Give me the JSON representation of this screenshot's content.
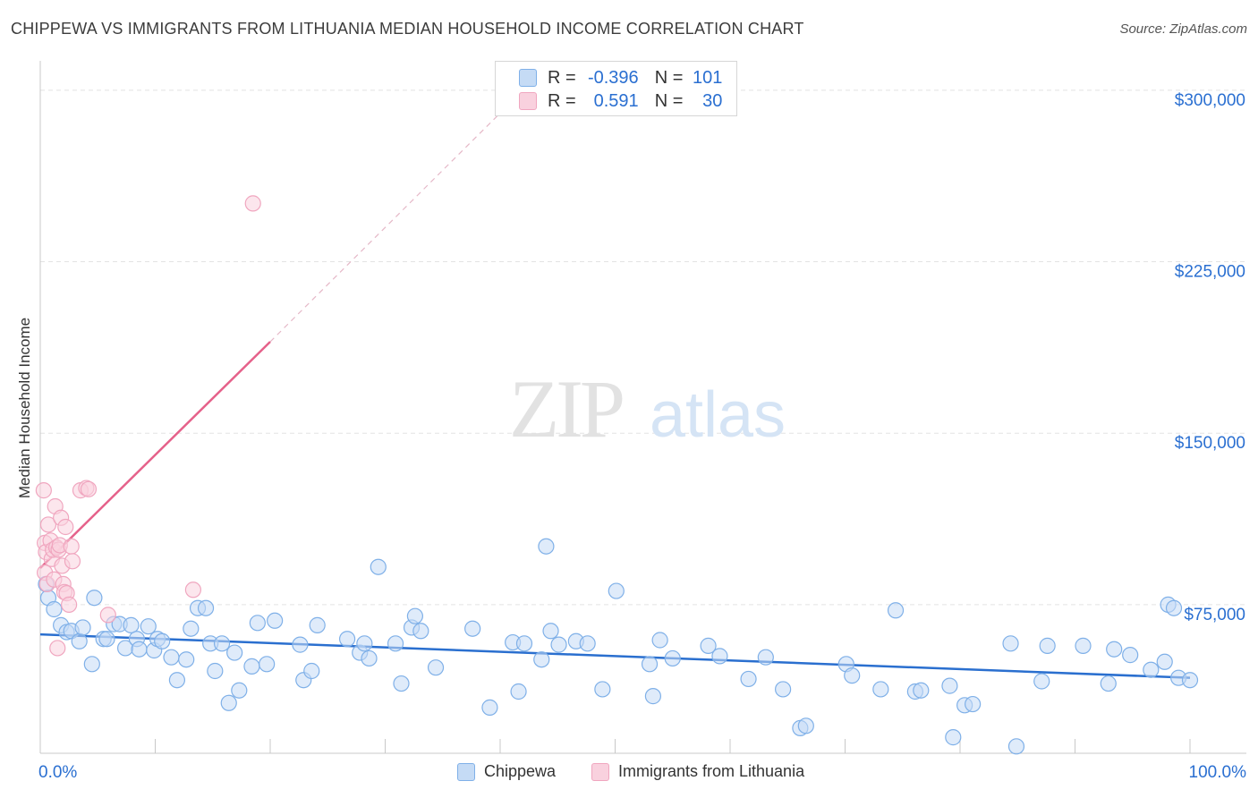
{
  "chart_data": {
    "type": "scatter",
    "title": "CHIPPEWA VS IMMIGRANTS FROM LITHUANIA MEDIAN HOUSEHOLD INCOME CORRELATION CHART",
    "source": "Source: ZipAtlas.com",
    "ylabel": "Median Household Income",
    "xlabel": "",
    "xlim": [
      0,
      100
    ],
    "ylim": [
      10000,
      316000
    ],
    "x_tick_labels": [
      "0.0%",
      "100.0%"
    ],
    "y_tick_values": [
      75000,
      150000,
      225000,
      300000
    ],
    "y_tick_labels": [
      "$75,000",
      "$150,000",
      "$225,000",
      "$300,000"
    ],
    "watermark": {
      "zip": "ZIP",
      "atlas": "atlas"
    },
    "legend": [
      {
        "r_label": "R =",
        "r_value": "-0.396",
        "n_label": "N =",
        "n_value": "101"
      },
      {
        "r_label": "R =",
        "r_value": "0.591",
        "n_label": "N =",
        "n_value": "30"
      }
    ],
    "series": [
      {
        "name": "Chippewa",
        "color": "#7fb0e8",
        "fill": "#c5dbf5",
        "line_color": "#2a6fcf",
        "trend": {
          "x": [
            0,
            100
          ],
          "y": [
            62000,
            43000
          ]
        },
        "points": [
          [
            0.5,
            84000
          ],
          [
            0.7,
            78000
          ],
          [
            1.2,
            73000
          ],
          [
            1.8,
            66000
          ],
          [
            2.3,
            63000
          ],
          [
            2.7,
            63500
          ],
          [
            3.4,
            59000
          ],
          [
            3.7,
            65000
          ],
          [
            4.5,
            49000
          ],
          [
            4.7,
            78000
          ],
          [
            5.5,
            60000
          ],
          [
            5.8,
            60000
          ],
          [
            6.4,
            66500
          ],
          [
            6.9,
            66500
          ],
          [
            7.4,
            56000
          ],
          [
            7.9,
            66000
          ],
          [
            8.4,
            60000
          ],
          [
            8.6,
            55500
          ],
          [
            9.4,
            65500
          ],
          [
            9.9,
            55000
          ],
          [
            10.2,
            60000
          ],
          [
            10.6,
            59000
          ],
          [
            11.4,
            52000
          ],
          [
            11.9,
            42000
          ],
          [
            12.7,
            51000
          ],
          [
            13.1,
            64500
          ],
          [
            13.7,
            73500
          ],
          [
            14.4,
            73500
          ],
          [
            14.8,
            58000
          ],
          [
            15.2,
            46000
          ],
          [
            15.8,
            58000
          ],
          [
            16.4,
            32000
          ],
          [
            16.9,
            54000
          ],
          [
            17.3,
            37500
          ],
          [
            18.4,
            48000
          ],
          [
            18.9,
            67000
          ],
          [
            19.7,
            49000
          ],
          [
            20.4,
            68000
          ],
          [
            22.6,
            57500
          ],
          [
            22.9,
            42000
          ],
          [
            23.6,
            46000
          ],
          [
            24.1,
            66000
          ],
          [
            26.7,
            60000
          ],
          [
            27.8,
            54000
          ],
          [
            28.2,
            58000
          ],
          [
            28.6,
            51500
          ],
          [
            29.4,
            91500
          ],
          [
            30.9,
            58000
          ],
          [
            31.4,
            40500
          ],
          [
            32.3,
            65000
          ],
          [
            32.6,
            70000
          ],
          [
            33.1,
            63500
          ],
          [
            34.4,
            47500
          ],
          [
            37.6,
            64500
          ],
          [
            39.1,
            30000
          ],
          [
            41.1,
            58500
          ],
          [
            41.6,
            37000
          ],
          [
            42.1,
            58000
          ],
          [
            43.6,
            51000
          ],
          [
            44.0,
            100500
          ],
          [
            44.4,
            63500
          ],
          [
            45.1,
            57500
          ],
          [
            46.6,
            59000
          ],
          [
            47.6,
            58000
          ],
          [
            48.9,
            38000
          ],
          [
            50.1,
            81000
          ],
          [
            53.0,
            49000
          ],
          [
            53.3,
            35000
          ],
          [
            53.9,
            59500
          ],
          [
            55.0,
            51500
          ],
          [
            58.1,
            57000
          ],
          [
            59.1,
            52500
          ],
          [
            61.6,
            42500
          ],
          [
            63.1,
            52000
          ],
          [
            64.6,
            38000
          ],
          [
            66.1,
            21000
          ],
          [
            66.6,
            22000
          ],
          [
            70.1,
            49000
          ],
          [
            70.6,
            44000
          ],
          [
            73.1,
            38000
          ],
          [
            74.4,
            72500
          ],
          [
            76.1,
            37000
          ],
          [
            76.6,
            37500
          ],
          [
            79.1,
            39500
          ],
          [
            79.4,
            17000
          ],
          [
            80.4,
            31000
          ],
          [
            81.1,
            31500
          ],
          [
            84.4,
            58000
          ],
          [
            84.9,
            13000
          ],
          [
            87.1,
            41500
          ],
          [
            87.6,
            57000
          ],
          [
            90.7,
            57000
          ],
          [
            92.9,
            40500
          ],
          [
            93.4,
            55500
          ],
          [
            94.8,
            53000
          ],
          [
            96.6,
            46500
          ],
          [
            97.8,
            50000
          ],
          [
            98.1,
            75000
          ],
          [
            98.6,
            73500
          ],
          [
            99.0,
            43000
          ],
          [
            100.0,
            42000
          ]
        ]
      },
      {
        "name": "Immigrants from Lithuania",
        "color": "#f0a6bf",
        "fill": "#f9d1de",
        "line_color": "#e5618a",
        "trend": {
          "x": [
            0,
            20
          ],
          "y": [
            91000,
            190000
          ]
        },
        "trend_dashed": {
          "x": [
            20,
            42
          ],
          "y": [
            190000,
            300000
          ]
        },
        "points": [
          [
            0.3,
            125000
          ],
          [
            0.4,
            89000
          ],
          [
            0.4,
            102000
          ],
          [
            0.5,
            98000
          ],
          [
            0.6,
            84000
          ],
          [
            0.7,
            110000
          ],
          [
            0.9,
            103000
          ],
          [
            1.0,
            95000
          ],
          [
            1.1,
            99000
          ],
          [
            1.2,
            86000
          ],
          [
            1.3,
            118000
          ],
          [
            1.4,
            100000
          ],
          [
            1.5,
            56000
          ],
          [
            1.6,
            99000
          ],
          [
            1.7,
            101000
          ],
          [
            1.8,
            113000
          ],
          [
            1.9,
            92000
          ],
          [
            2.0,
            84000
          ],
          [
            2.1,
            80500
          ],
          [
            2.2,
            109000
          ],
          [
            2.3,
            80000
          ],
          [
            2.5,
            75000
          ],
          [
            2.7,
            100500
          ],
          [
            2.8,
            94000
          ],
          [
            3.5,
            125000
          ],
          [
            4.0,
            126000
          ],
          [
            4.2,
            125500
          ],
          [
            5.9,
            70500
          ],
          [
            13.3,
            81500
          ],
          [
            18.5,
            250500
          ]
        ]
      }
    ]
  }
}
